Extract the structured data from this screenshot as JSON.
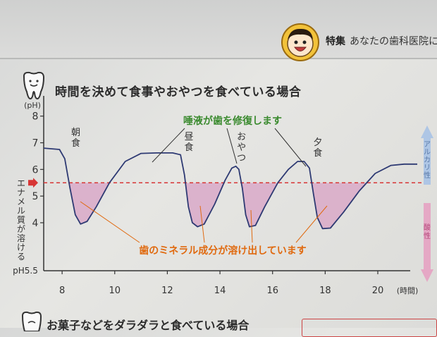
{
  "header": {
    "tag": "特集",
    "title": "あなたの歯科医院に"
  },
  "section_title": "時間を決めて食事やおやつを食べている場合",
  "bottom_title": "お菓子などをダラダラと食べている場合",
  "chart_data": {
    "type": "line",
    "title": "時間を決めて食事やおやつを食べている場合",
    "ylabel": "(pH)",
    "xlabel": "(時間)",
    "xlim": [
      7.3,
      21.5
    ],
    "ylim": [
      2.2,
      8.6
    ],
    "x_ticks": [
      8,
      10,
      12,
      14,
      16,
      18,
      20
    ],
    "y_ticks": [
      4,
      5,
      6,
      7,
      8
    ],
    "threshold": {
      "value": 5.5,
      "label": "pH5.5"
    },
    "threshold_side_label": "エナメル質が溶ける",
    "series": [
      {
        "points": [
          [
            7.3,
            6.8
          ],
          [
            7.9,
            6.75
          ],
          [
            8.1,
            6.4
          ],
          [
            8.3,
            5.3
          ],
          [
            8.5,
            4.3
          ],
          [
            8.7,
            3.95
          ],
          [
            8.95,
            4.05
          ],
          [
            9.3,
            4.6
          ],
          [
            9.8,
            5.5
          ],
          [
            10.4,
            6.3
          ],
          [
            11.0,
            6.6
          ],
          [
            11.6,
            6.62
          ],
          [
            12.2,
            6.62
          ],
          [
            12.5,
            6.55
          ],
          [
            12.65,
            5.8
          ],
          [
            12.8,
            4.6
          ],
          [
            12.95,
            4.0
          ],
          [
            13.15,
            3.85
          ],
          [
            13.4,
            3.95
          ],
          [
            13.8,
            4.7
          ],
          [
            14.2,
            5.6
          ],
          [
            14.45,
            6.05
          ],
          [
            14.6,
            6.12
          ],
          [
            14.72,
            6.0
          ],
          [
            14.85,
            5.3
          ],
          [
            14.98,
            4.3
          ],
          [
            15.12,
            3.85
          ],
          [
            15.35,
            3.9
          ],
          [
            15.7,
            4.6
          ],
          [
            16.2,
            5.5
          ],
          [
            16.6,
            6.0
          ],
          [
            16.95,
            6.3
          ],
          [
            17.2,
            6.3
          ],
          [
            17.4,
            6.05
          ],
          [
            17.55,
            5.1
          ],
          [
            17.7,
            4.2
          ],
          [
            17.9,
            3.78
          ],
          [
            18.2,
            3.8
          ],
          [
            18.7,
            4.4
          ],
          [
            19.3,
            5.2
          ],
          [
            19.9,
            5.85
          ],
          [
            20.5,
            6.15
          ],
          [
            21.0,
            6.2
          ],
          [
            21.5,
            6.2
          ]
        ]
      }
    ],
    "meal_labels": [
      {
        "x": 8.6,
        "text": "朝食"
      },
      {
        "x": 12.9,
        "text": "昼食"
      },
      {
        "x": 14.9,
        "text": "おやつ"
      },
      {
        "x": 17.8,
        "text": "夕食"
      }
    ],
    "annotations": {
      "saliva": "唾液が歯を修復します",
      "dissolve": "歯のミネラル成分が溶け出しています"
    },
    "side_scale": {
      "alkaline": "アルカリ性",
      "acidic": "酸性"
    },
    "colors": {
      "curve": "#2e3a73",
      "threshold": "#d73535",
      "fill": "#d9a9c8",
      "saliva_text": "#3a8a2e",
      "dissolve_text": "#e06a10",
      "alkaline_arrow": "#a9c3e6",
      "acid_arrow": "#e6a2c2"
    }
  }
}
